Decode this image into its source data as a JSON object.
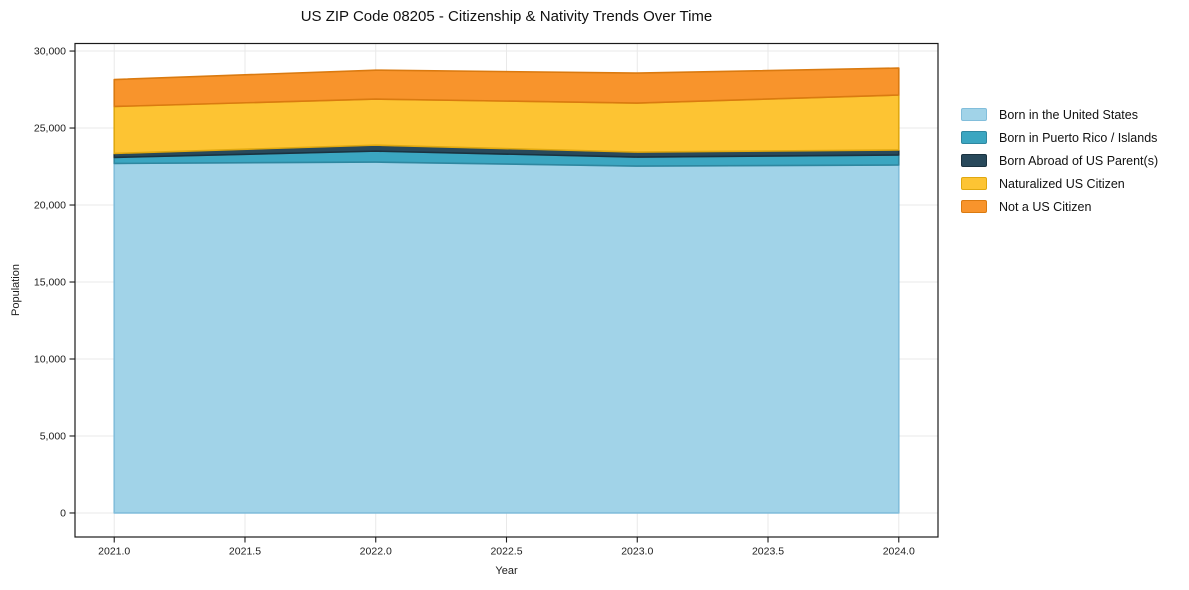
{
  "chart_data": {
    "type": "area",
    "stacked": true,
    "title": "US ZIP Code 08205 - Citizenship & Nativity Trends Over Time",
    "xlabel": "Year",
    "ylabel": "Population",
    "x": [
      2021,
      2022,
      2023,
      2024
    ],
    "series": [
      {
        "name": "Born in the United States",
        "color": "#a1d3e8",
        "edge_color": "#82bedb",
        "values": [
          22700,
          22790,
          22530,
          22600
        ]
      },
      {
        "name": "Born in Puerto Rico / Islands",
        "color": "#3ba6c1",
        "edge_color": "#2e87a0",
        "values": [
          390,
          710,
          585,
          650
        ]
      },
      {
        "name": "Born Abroad of US Parent(s)",
        "color": "#28495b",
        "edge_color": "#1a323f",
        "values": [
          260,
          390,
          325,
          325
        ]
      },
      {
        "name": "Naturalized US Citizen",
        "color": "#fdc433",
        "edge_color": "#e0a80f",
        "values": [
          3050,
          2990,
          3180,
          3570
        ]
      },
      {
        "name": "Not a US Citizen",
        "color": "#f8942c",
        "edge_color": "#da7a10",
        "values": [
          1750,
          1880,
          1950,
          1750
        ]
      }
    ],
    "totals": [
      28150,
      28760,
      28570,
      28895
    ],
    "xlim": [
      2020.85,
      2024.15
    ],
    "ylim": [
      -1560,
      30490
    ],
    "xticks": {
      "values": [
        2021.0,
        2021.5,
        2022.0,
        2022.5,
        2023.0,
        2023.5,
        2024.0
      ],
      "labels": [
        "2021.0",
        "2021.5",
        "2022.0",
        "2022.5",
        "2023.0",
        "2023.5",
        "2024.0"
      ]
    },
    "yticks": {
      "values": [
        0,
        5000,
        10000,
        15000,
        20000,
        25000,
        30000
      ],
      "labels": [
        "0",
        "5,000",
        "10,000",
        "15,000",
        "20,000",
        "25,000",
        "30,000"
      ]
    },
    "grid": true,
    "grid_color": "#e9e9e9",
    "axis_color": "#1a1a1a",
    "legend_position": "right"
  }
}
